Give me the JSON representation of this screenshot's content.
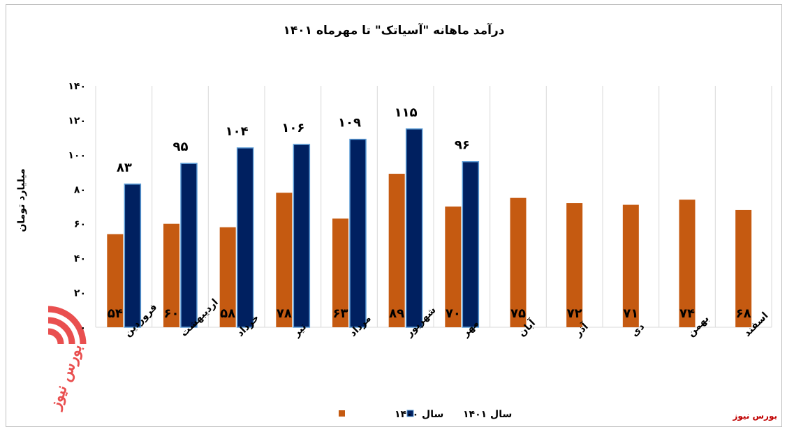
{
  "colors": {
    "series_1400": "#c55a11",
    "series_1401": "#002060",
    "series_1401_border": "#5b9bd5",
    "grid": "#d9d9d9",
    "logo": "#e94f4f"
  },
  "logo": {
    "text": "بورس نیوز",
    "icon": "bourse-news-logo-icon"
  },
  "source_label": "بورس نیوز",
  "chart_data": {
    "type": "bar",
    "title": "درآمد ماهانه \"آسیاتک\" تا مهرماه ۱۴۰۱",
    "ylabel": "میلیارد تومان",
    "xlabel": "",
    "ylim": [
      0,
      140
    ],
    "yticks": [
      0,
      20,
      40,
      60,
      80,
      100,
      120,
      140
    ],
    "ytick_labels": [
      "۰",
      "۲۰",
      "۴۰",
      "۶۰",
      "۸۰",
      "۱۰۰",
      "۱۲۰",
      "۱۴۰"
    ],
    "grid": "vertical",
    "legend_position": "bottom",
    "categories": [
      "فروردین",
      "اردیبهشت",
      "خرداد",
      "تیر",
      "مرداد",
      "شهریور",
      "مهر",
      "آبان",
      "آذر",
      "دی",
      "بهمن",
      "اسفند"
    ],
    "series": [
      {
        "name": "سال ۱۴۰۰",
        "values": [
          54,
          60,
          58,
          78,
          63,
          89,
          70,
          75,
          72,
          71,
          74,
          68
        ],
        "labels": [
          "۵۴",
          "۶۰",
          "۵۸",
          "۷۸",
          "۶۳",
          "۸۹",
          "۷۰",
          "۷۵",
          "۷۲",
          "۷۱",
          "۷۴",
          "۶۸"
        ]
      },
      {
        "name": "سال ۱۴۰۱",
        "values": [
          83,
          95,
          104,
          106,
          109,
          115,
          96,
          null,
          null,
          null,
          null,
          null
        ],
        "labels": [
          "۸۳",
          "۹۵",
          "۱۰۴",
          "۱۰۶",
          "۱۰۹",
          "۱۱۵",
          "۹۶",
          "",
          "",
          "",
          "",
          ""
        ]
      }
    ]
  }
}
